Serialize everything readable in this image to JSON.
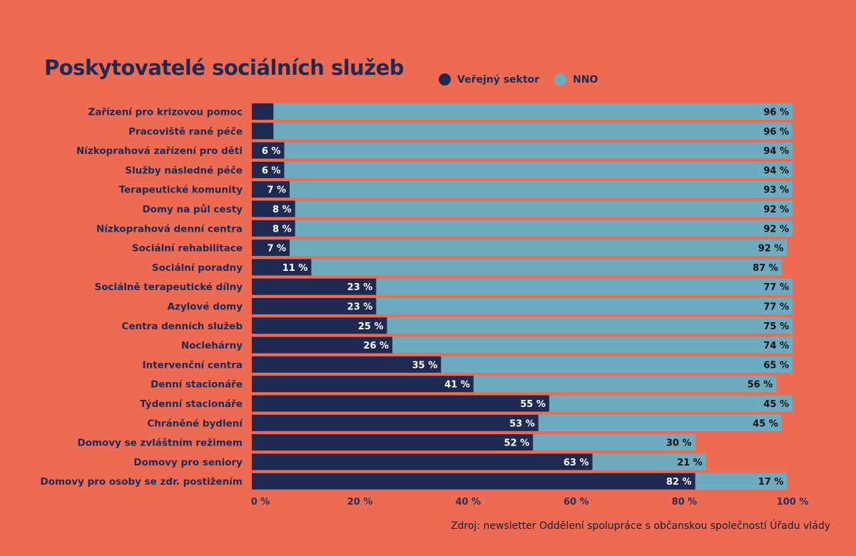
{
  "chart_data": {
    "type": "bar",
    "orientation": "horizontal",
    "stacked": true,
    "title": "Poskytovatelé sociálních služeb",
    "xlabel": "",
    "ylabel": "",
    "xlim": [
      0,
      100
    ],
    "x_ticks": [
      "0 %",
      "20 %",
      "40 %",
      "60 %",
      "80 %",
      "100 %"
    ],
    "x_tick_values": [
      0,
      20,
      40,
      60,
      80,
      100
    ],
    "grid": false,
    "legend_position": "top",
    "categories": [
      "Zařízení pro krizovou pomoc",
      "Pracoviště rané péče",
      "Nízkoprahová zařízení pro děti",
      "Služby následné péče",
      "Terapeutické komunity",
      "Domy na půl cesty",
      "Nízkoprahová denní centra",
      "Sociální rehabilitace",
      "Sociální poradny",
      "Sociálně terapeutické dílny",
      "Azylové domy",
      "Centra denních služeb",
      "Noclehárny",
      "Intervenční centra",
      "Denní stacionáře",
      "Týdenní stacionáře",
      "Chráněné bydlení",
      "Domovy se zvláštním režimem",
      "Domovy pro seniory",
      "Domovy pro osoby se zdr. postižením"
    ],
    "series": [
      {
        "name": "Veřejný sektor",
        "color": "#1f2a52",
        "values": [
          4,
          4,
          6,
          6,
          7,
          8,
          8,
          7,
          11,
          23,
          23,
          25,
          26,
          35,
          41,
          55,
          53,
          52,
          63,
          82
        ],
        "labels": [
          "",
          "",
          "6 %",
          "6 %",
          "7 %",
          "8 %",
          "8 %",
          "7 %",
          "11 %",
          "23 %",
          "23 %",
          "25 %",
          "26 %",
          "35 %",
          "41 %",
          "55 %",
          "53 %",
          "52 %",
          "63 %",
          "82 %"
        ]
      },
      {
        "name": "NNO",
        "color": "#6dabc1",
        "values": [
          96,
          96,
          94,
          94,
          93,
          92,
          92,
          92,
          87,
          77,
          77,
          75,
          74,
          65,
          56,
          45,
          45,
          30,
          21,
          17
        ],
        "labels": [
          "96 %",
          "96 %",
          "94 %",
          "94 %",
          "93 %",
          "92 %",
          "92 %",
          "92 %",
          "87 %",
          "77 %",
          "77 %",
          "75 %",
          "74 %",
          "65 %",
          "56 %",
          "45 %",
          "45 %",
          "30 %",
          "21 %",
          "17 %"
        ]
      }
    ],
    "source": "Zdroj: newsletter Oddělení spolupráce s občanskou společností Úřadu vlády"
  },
  "colors": {
    "background": "#ee6b53",
    "text_dark": "#1f2a52"
  }
}
